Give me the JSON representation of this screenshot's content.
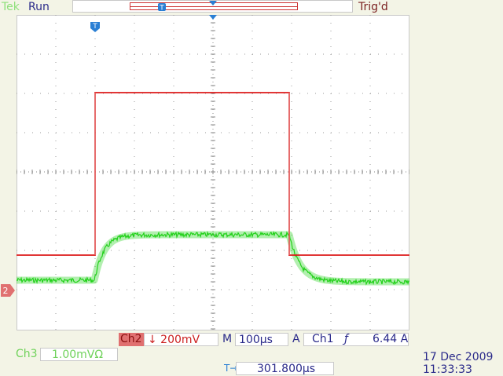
{
  "header": {
    "brand": "Tek",
    "state": "Run",
    "trigger_status": "Trig'd",
    "trigger_marker_label": "T"
  },
  "channel_markers": {
    "ch2": "2"
  },
  "colors": {
    "ch1_trace": "#dd1a1a",
    "ch3_trace": "#22d11a",
    "readout_text": "#2a2a8a",
    "ch2_badge": "#e07070"
  },
  "readouts": {
    "ch2_tag": "Ch2",
    "ch2_scale": "↓ 200mV",
    "timebase_label": "M",
    "timebase_value": "100µs",
    "acq_label": "A",
    "trigger_source": "Ch1",
    "trigger_slope_icon": "rising-edge-icon",
    "trigger_slope_glyph": "ƒ",
    "trigger_level": "6.44 A",
    "ch3_label": "Ch3",
    "ch3_scale": "1.00mVΩ",
    "trigger_position_icon": "T→▾",
    "trigger_position": "301.800µs",
    "date": "17 Dec  2009",
    "time": "11:33:33"
  }
}
